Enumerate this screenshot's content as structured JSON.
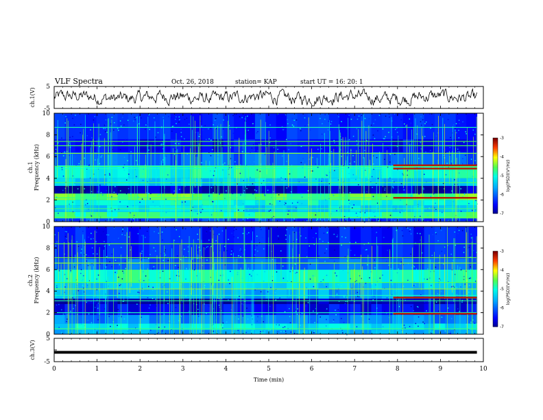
{
  "header": {
    "title": "VLF Spectra",
    "date": "Oct. 26, 2018",
    "station": "station= KAP",
    "start": "start  UT =   16: 20: 1"
  },
  "chart_data": [
    {
      "type": "line",
      "panel": "ch1-waveform",
      "ylabel": "ch.1(V)",
      "ylim": [
        -5,
        5
      ],
      "yticks": [
        "5",
        "-5"
      ],
      "x_range_min": [
        0,
        9.85
      ],
      "description_values": "noisy waveform oscillating roughly between -3 and 3 V"
    },
    {
      "type": "heatmap",
      "panel": "ch1-spectrogram",
      "ylabel": "ch.1\nFrequency (kHz)",
      "ylabel_lines": [
        "ch.1",
        "Frequency (kHz)"
      ],
      "ylim": [
        0,
        10
      ],
      "yticks": [
        "0",
        "2",
        "4",
        "6",
        "8",
        "10"
      ],
      "xlim": [
        0,
        9.85
      ],
      "colorbar": {
        "label": "log(PSD)(V²/Hz)",
        "range": [
          -7,
          -3
        ],
        "ticks": [
          "-3",
          "-4",
          "-5",
          "-6",
          "-7"
        ]
      },
      "bands_khz": [
        {
          "lo": 0.0,
          "hi": 0.3,
          "level": -6.2
        },
        {
          "lo": 0.3,
          "hi": 0.9,
          "level": -4.8
        },
        {
          "lo": 0.9,
          "hi": 1.5,
          "level": -5.3
        },
        {
          "lo": 1.5,
          "hi": 2.0,
          "level": -5.0
        },
        {
          "lo": 2.0,
          "hi": 2.6,
          "level": -4.5
        },
        {
          "lo": 2.6,
          "hi": 3.3,
          "level": -6.8
        },
        {
          "lo": 3.3,
          "hi": 4.0,
          "level": -5.4
        },
        {
          "lo": 4.0,
          "hi": 5.2,
          "level": -5.0
        },
        {
          "lo": 5.2,
          "hi": 6.4,
          "level": -6.0
        },
        {
          "lo": 6.4,
          "hi": 7.6,
          "level": -6.5
        },
        {
          "lo": 7.6,
          "hi": 10.0,
          "level": -6.3
        }
      ],
      "tones_khz": [
        0.4,
        1.2,
        2.2,
        3.6,
        4.9,
        5.1,
        6.3,
        7.0,
        7.4,
        8.7
      ],
      "late_tones_khz": [
        2.2,
        4.9,
        5.2
      ],
      "late_start_min": 7.9
    },
    {
      "type": "heatmap",
      "panel": "ch2-spectrogram",
      "ylabel": "ch.2\nFrequency (kHz)",
      "ylabel_lines": [
        "ch.2",
        "Frequency (kHz)"
      ],
      "ylim": [
        0,
        10
      ],
      "yticks": [
        "0",
        "2",
        "4",
        "6",
        "8",
        "10"
      ],
      "xlim": [
        0,
        9.85
      ],
      "colorbar": {
        "label": "log(PSD)(V²/Hz)",
        "range": [
          -7,
          -3
        ],
        "ticks": [
          "-3",
          "-4",
          "-5",
          "-6",
          "-7"
        ]
      },
      "bands_khz": [
        {
          "lo": 0.0,
          "hi": 0.4,
          "level": -5.6
        },
        {
          "lo": 0.4,
          "hi": 1.0,
          "level": -5.2
        },
        {
          "lo": 1.0,
          "hi": 1.8,
          "level": -5.8
        },
        {
          "lo": 1.8,
          "hi": 2.8,
          "level": -6.5
        },
        {
          "lo": 2.8,
          "hi": 3.3,
          "level": -6.9
        },
        {
          "lo": 3.3,
          "hi": 4.2,
          "level": -5.6
        },
        {
          "lo": 4.2,
          "hi": 4.8,
          "level": -5.4
        },
        {
          "lo": 4.8,
          "hi": 6.0,
          "level": -4.9
        },
        {
          "lo": 6.0,
          "hi": 7.0,
          "level": -6.0
        },
        {
          "lo": 7.0,
          "hi": 10.0,
          "level": -6.4
        }
      ],
      "tones_khz": [
        0.5,
        2.0,
        3.1,
        3.6,
        4.2,
        4.8,
        6.6,
        7.1,
        8.4
      ],
      "late_tones_khz": [
        1.9,
        3.4
      ],
      "late_start_min": 7.9
    },
    {
      "type": "line",
      "panel": "ch3-waveform",
      "ylabel": "ch.3(V)",
      "ylim": [
        -5,
        5
      ],
      "yticks": [
        "5",
        "0",
        "-5"
      ],
      "x_range_min": [
        0,
        9.85
      ],
      "values_constant_v": -1
    }
  ],
  "xaxis": {
    "label": "Time (min)",
    "lim": [
      0,
      10
    ],
    "ticks": [
      "0",
      "1",
      "2",
      "3",
      "4",
      "5",
      "6",
      "7",
      "8",
      "9",
      "10"
    ]
  },
  "colors": {
    "deep": "#00008f",
    "blue": "#0030ff",
    "cyan": "#00e0ff",
    "green": "#40ff60",
    "yellow": "#ffff00",
    "red": "#ff0000",
    "darkred": "#800000"
  }
}
